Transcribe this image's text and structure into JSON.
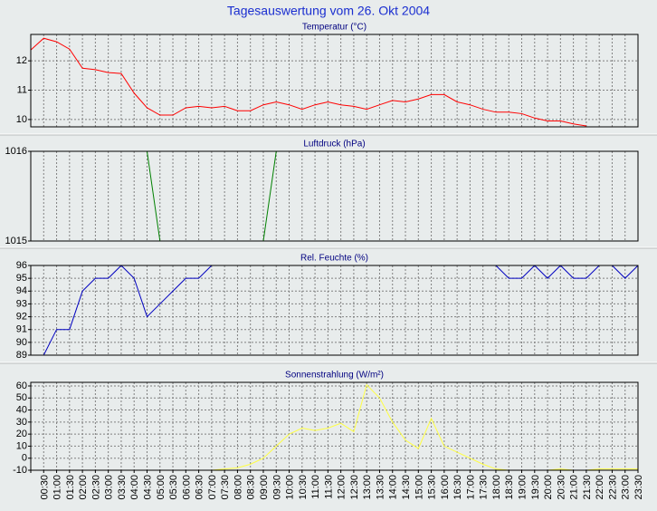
{
  "title": "Tagesauswertung vom 26. Okt 2004",
  "chart_data": [
    {
      "type": "line",
      "title": "Temperatur (°C)",
      "color": "#ff0000",
      "ylim": [
        9.75,
        12.9
      ],
      "yticks": [
        10,
        11,
        12
      ],
      "grid": true,
      "values": [
        12.37,
        12.77,
        12.65,
        12.4,
        11.75,
        11.7,
        11.6,
        11.57,
        10.9,
        10.4,
        10.15,
        10.15,
        10.4,
        10.45,
        10.4,
        10.45,
        10.3,
        10.3,
        10.5,
        10.6,
        10.5,
        10.35,
        10.5,
        10.6,
        10.5,
        10.45,
        10.35,
        10.5,
        10.65,
        10.6,
        10.7,
        10.85,
        10.85,
        10.6,
        10.5,
        10.35,
        10.25,
        10.25,
        10.2,
        10.05,
        9.95,
        9.95,
        9.85,
        9.78,
        null,
        null,
        null,
        null
      ]
    },
    {
      "type": "line",
      "title": "Luftdruck (hPa)",
      "color": "#008000",
      "ylim": [
        1015,
        1016
      ],
      "yticks": [
        1015,
        1016
      ],
      "grid": true,
      "values": [
        1016,
        1016,
        1016,
        1016,
        1016,
        1016,
        1016,
        1016,
        1016,
        1016,
        1015,
        1015,
        1015,
        1015,
        1015,
        1015,
        1015,
        1015,
        1015,
        1016,
        1016,
        1016,
        1016,
        1016,
        1016,
        1016,
        1016,
        1016,
        1016,
        1016,
        1016,
        1016,
        1016,
        1016,
        1016,
        1016,
        1016,
        1016,
        1016,
        1016,
        1016,
        1016,
        1016,
        1016,
        1016,
        1016,
        1016,
        1016
      ]
    },
    {
      "type": "line",
      "title": "Rel. Feuchte (%)",
      "color": "#0000c0",
      "ylim": [
        89,
        96
      ],
      "yticks": [
        89,
        90,
        91,
        92,
        93,
        94,
        95,
        96
      ],
      "grid": true,
      "values": [
        null,
        89,
        91,
        91,
        94,
        95,
        95,
        96,
        95,
        92,
        93,
        94,
        95,
        95,
        96,
        96,
        96,
        96,
        96,
        96,
        96,
        96,
        96,
        96,
        96,
        96,
        96,
        96,
        96,
        96,
        96,
        96,
        96,
        96,
        96,
        96,
        96,
        95,
        95,
        96,
        95,
        96,
        95,
        95,
        96,
        96,
        95,
        96
      ]
    },
    {
      "type": "line",
      "title": "Sonnenstrahlung (W/m²)",
      "color": "#ffff40",
      "ylim": [
        -10,
        63
      ],
      "yticks": [
        -10,
        0,
        10,
        20,
        30,
        40,
        50,
        60
      ],
      "grid": true,
      "categories": [
        null,
        "00:30",
        "01:00",
        "01:30",
        "02:00",
        "02:30",
        "03:00",
        "03:30",
        "04:00",
        "04:30",
        "05:00",
        "05:30",
        "06:00",
        "06:30",
        "07:00",
        "07:30",
        "08:00",
        "08:30",
        "09:00",
        "09:30",
        "10:00",
        "10:30",
        "11:00",
        "11:30",
        "12:00",
        "12:30",
        "13:00",
        "13:30",
        "14:00",
        "14:30",
        "15:00",
        "15:30",
        "16:00",
        "16:30",
        "17:00",
        "17:30",
        "18:00",
        "18:30",
        "19:00",
        "19:30",
        "20:00",
        "20:30",
        "21:00",
        "21:30",
        "22:00",
        "22:30",
        "23:00",
        "23:30"
      ],
      "values": [
        -10,
        -10,
        -10,
        -10,
        -10,
        -10,
        -10,
        -10,
        -10,
        -10,
        -10,
        -10,
        -10,
        -10,
        -10,
        -9,
        -8,
        -5,
        0,
        10,
        20,
        25,
        23,
        25,
        29,
        22,
        61,
        50,
        30,
        15,
        8,
        33,
        10,
        5,
        0,
        -5,
        -9,
        -10,
        -10,
        -10,
        -10,
        -9,
        -10,
        -10,
        -9,
        -9,
        -9,
        -9
      ]
    }
  ]
}
